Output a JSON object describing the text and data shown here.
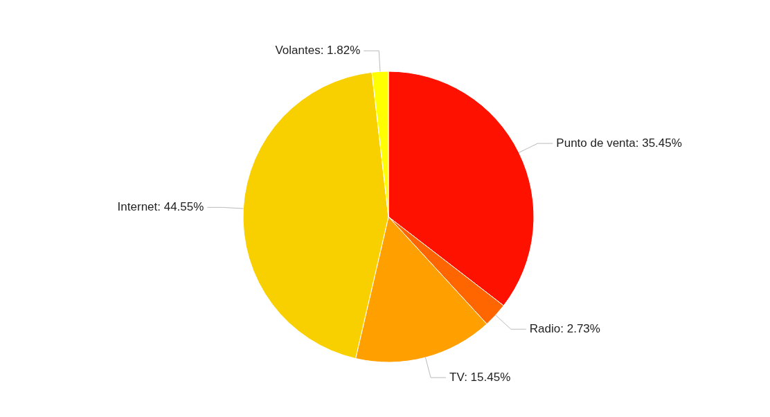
{
  "chart_data": {
    "type": "pie",
    "categories": [
      "Punto de venta",
      "Radio",
      "TV",
      "Internet",
      "Volantes"
    ],
    "values": [
      35.45,
      2.73,
      15.45,
      44.55,
      1.82
    ],
    "value_labels": [
      "35.45%",
      "2.73%",
      "15.45%",
      "44.55%",
      "1.82%"
    ],
    "colors": [
      "#ff1100",
      "#ff6600",
      "#ffa000",
      "#f8d000",
      "#ffff00"
    ]
  }
}
